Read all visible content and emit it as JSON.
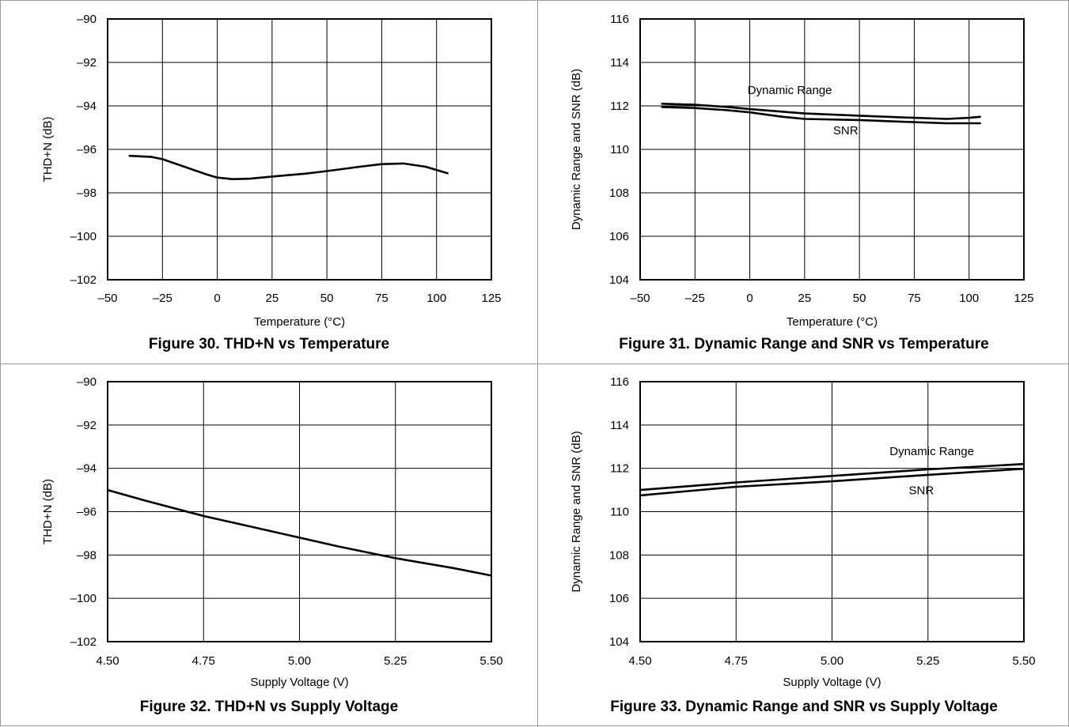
{
  "chart_data": [
    {
      "type": "line",
      "caption": "Figure 30.  THD+N vs Temperature",
      "xlabel": "Temperature (°C)",
      "ylabel": "THD+N (dB)",
      "xlim": [
        -50,
        125
      ],
      "ylim": [
        -102,
        -90
      ],
      "xticks": [
        -50,
        -25,
        0,
        25,
        50,
        75,
        100,
        125
      ],
      "yticks": [
        -90,
        -92,
        -94,
        -96,
        -98,
        -100,
        -102
      ],
      "xtick_labels": [
        "–50",
        "–25",
        "0",
        "25",
        "50",
        "75",
        "100",
        "125"
      ],
      "ytick_labels": [
        "–90",
        "–92",
        "–94",
        "–96",
        "–98",
        "–100",
        "–102"
      ],
      "grid": true,
      "series": [
        {
          "points": [
            [
              -40,
              -96.3
            ],
            [
              -30,
              -96.35
            ],
            [
              -25,
              -96.45
            ],
            [
              -15,
              -96.8
            ],
            [
              -5,
              -97.15
            ],
            [
              0,
              -97.3
            ],
            [
              7,
              -97.37
            ],
            [
              15,
              -97.35
            ],
            [
              25,
              -97.25
            ],
            [
              40,
              -97.12
            ],
            [
              50,
              -97.0
            ],
            [
              65,
              -96.8
            ],
            [
              75,
              -96.68
            ],
            [
              85,
              -96.65
            ],
            [
              95,
              -96.8
            ],
            [
              105,
              -97.1
            ]
          ]
        }
      ],
      "annotations": []
    },
    {
      "type": "line",
      "caption": "Figure 31. Dynamic Range and SNR vs Temperature",
      "xlabel": "Temperature (°C)",
      "ylabel": "Dynamic Range and SNR (dB)",
      "xlim": [
        -50,
        125
      ],
      "ylim": [
        104,
        116
      ],
      "xticks": [
        -50,
        -25,
        0,
        25,
        50,
        75,
        100,
        125
      ],
      "yticks": [
        116,
        114,
        112,
        110,
        108,
        106,
        104
      ],
      "xtick_labels": [
        "–50",
        "–25",
        "0",
        "25",
        "50",
        "75",
        "100",
        "125"
      ],
      "ytick_labels": [
        "116",
        "114",
        "112",
        "110",
        "108",
        "106",
        "104"
      ],
      "grid": true,
      "series": [
        {
          "name": "Dynamic Range",
          "points": [
            [
              -40,
              112.1
            ],
            [
              -25,
              112.05
            ],
            [
              -10,
              111.95
            ],
            [
              0,
              111.85
            ],
            [
              25,
              111.65
            ],
            [
              50,
              111.55
            ],
            [
              75,
              111.45
            ],
            [
              90,
              111.4
            ],
            [
              100,
              111.45
            ],
            [
              105,
              111.5
            ]
          ]
        },
        {
          "name": "SNR",
          "points": [
            [
              -40,
              111.95
            ],
            [
              -25,
              111.9
            ],
            [
              -10,
              111.8
            ],
            [
              0,
              111.7
            ],
            [
              15,
              111.5
            ],
            [
              25,
              111.4
            ],
            [
              50,
              111.35
            ],
            [
              75,
              111.25
            ],
            [
              90,
              111.2
            ],
            [
              105,
              111.2
            ]
          ]
        }
      ],
      "annotations": [
        {
          "text": "Dynamic Range",
          "x": -1,
          "y": 112.55
        },
        {
          "text": "SNR",
          "x": 38,
          "y": 110.7
        }
      ]
    },
    {
      "type": "line",
      "caption": "Figure 32. THD+N vs Supply Voltage",
      "xlabel": "Supply Voltage (V)",
      "ylabel": "THD+N (dB)",
      "xlim": [
        4.5,
        5.5
      ],
      "ylim": [
        -102,
        -90
      ],
      "xticks": [
        4.5,
        4.75,
        5.0,
        5.25,
        5.5
      ],
      "yticks": [
        -90,
        -92,
        -94,
        -96,
        -98,
        -100,
        -102
      ],
      "xtick_labels": [
        "4.50",
        "4.75",
        "5.00",
        "5.25",
        "5.50"
      ],
      "ytick_labels": [
        "–90",
        "–92",
        "–94",
        "–96",
        "–98",
        "–100",
        "–102"
      ],
      "grid": true,
      "series": [
        {
          "points": [
            [
              4.5,
              -95.0
            ],
            [
              4.6,
              -95.5
            ],
            [
              4.75,
              -96.2
            ],
            [
              4.85,
              -96.6
            ],
            [
              5.0,
              -97.2
            ],
            [
              5.1,
              -97.6
            ],
            [
              5.25,
              -98.15
            ],
            [
              5.4,
              -98.6
            ],
            [
              5.5,
              -98.95
            ]
          ]
        }
      ],
      "annotations": []
    },
    {
      "type": "line",
      "caption": "Figure 33. Dynamic Range and SNR vs Supply Voltage",
      "xlabel": "Supply Voltage (V)",
      "ylabel": "Dynamic Range and SNR (dB)",
      "xlim": [
        4.5,
        5.5
      ],
      "ylim": [
        104,
        116
      ],
      "xticks": [
        4.5,
        4.75,
        5.0,
        5.25,
        5.5
      ],
      "yticks": [
        116,
        114,
        112,
        110,
        108,
        106,
        104
      ],
      "xtick_labels": [
        "4.50",
        "4.75",
        "5.00",
        "5.25",
        "5.50"
      ],
      "ytick_labels": [
        "116",
        "114",
        "112",
        "110",
        "108",
        "106",
        "104"
      ],
      "grid": true,
      "series": [
        {
          "name": "Dynamic Range",
          "points": [
            [
              4.5,
              111.0
            ],
            [
              4.75,
              111.35
            ],
            [
              5.0,
              111.65
            ],
            [
              5.25,
              111.95
            ],
            [
              5.5,
              112.2
            ]
          ]
        },
        {
          "name": "SNR",
          "points": [
            [
              4.5,
              110.75
            ],
            [
              4.75,
              111.15
            ],
            [
              5.0,
              111.4
            ],
            [
              5.25,
              111.7
            ],
            [
              5.5,
              111.98
            ]
          ]
        }
      ],
      "annotations": [
        {
          "text": "Dynamic Range",
          "x": 5.15,
          "y": 112.6
        },
        {
          "text": "SNR",
          "x": 5.2,
          "y": 110.8
        }
      ]
    }
  ]
}
